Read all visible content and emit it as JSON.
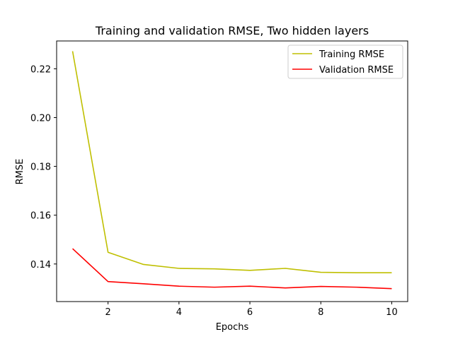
{
  "chart_data": {
    "type": "line",
    "title": "Training and validation RMSE, Two hidden layers",
    "xlabel": "Epochs",
    "ylabel": "RMSE",
    "x": [
      1,
      2,
      3,
      4,
      5,
      6,
      7,
      8,
      9,
      10
    ],
    "xlim": [
      0.55,
      10.45
    ],
    "ylim": [
      0.1246,
      0.2314
    ],
    "xticks": [
      2,
      4,
      6,
      8,
      10
    ],
    "yticks": [
      0.14,
      0.16,
      0.18,
      0.2,
      0.22
    ],
    "xtick_labels": [
      "2",
      "4",
      "6",
      "8",
      "10"
    ],
    "ytick_labels": [
      "0.14",
      "0.16",
      "0.18",
      "0.20",
      "0.22"
    ],
    "grid": false,
    "legend_position": "top-right",
    "series": [
      {
        "name": "Training RMSE",
        "color": "#bfbf00",
        "values": [
          0.2272,
          0.1448,
          0.1398,
          0.1382,
          0.138,
          0.1374,
          0.1382,
          0.1366,
          0.1364,
          0.1364
        ]
      },
      {
        "name": "Validation RMSE",
        "color": "#ff0000",
        "values": [
          0.1463,
          0.1328,
          0.1319,
          0.1309,
          0.1305,
          0.1309,
          0.1302,
          0.1308,
          0.1305,
          0.1299
        ]
      }
    ]
  }
}
